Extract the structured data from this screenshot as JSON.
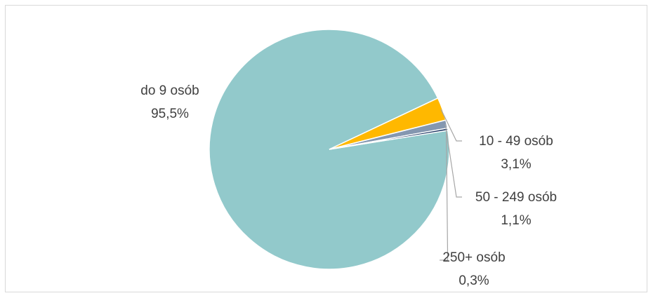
{
  "chart_data": {
    "type": "pie",
    "title": "",
    "slices": [
      {
        "label": "do 9 osób",
        "value": 95.5,
        "display": "95,5%",
        "color": "#92c9cb"
      },
      {
        "label": "10 - 49 osób",
        "value": 3.1,
        "display": "3,1%",
        "color": "#ffb800"
      },
      {
        "label": "50 - 249 osób",
        "value": 1.1,
        "display": "1,1%",
        "color": "#8497b0"
      },
      {
        "label": "250+ osób",
        "value": 0.3,
        "display": "0,3%",
        "color": "#1f3864"
      }
    ],
    "legend": "none"
  }
}
